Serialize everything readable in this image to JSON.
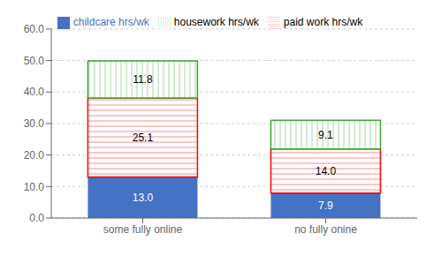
{
  "chart_data": {
    "type": "bar",
    "categories": [
      "some fully online",
      "no fully onine"
    ],
    "series": [
      {
        "name": "childcare hrs/wk",
        "color": "#4472c4",
        "values": [
          13.0,
          7.9
        ],
        "value_labels": [
          "13.0",
          "7.9"
        ]
      },
      {
        "name": "paid work hrs/wk",
        "color": "#ff0000",
        "values": [
          25.1,
          14.0
        ],
        "value_labels": [
          "25.1",
          "14.0"
        ]
      },
      {
        "name": "housework hrs/wk",
        "color": "#38a832",
        "values": [
          11.8,
          9.1
        ],
        "value_labels": [
          "11.8",
          "9.1"
        ]
      }
    ],
    "stacked": true,
    "data_labels": true,
    "ylim": [
      0,
      60
    ],
    "yticks": [
      {
        "value": 0,
        "label": "0.0"
      },
      {
        "value": 10,
        "label": "10.0"
      },
      {
        "value": 20,
        "label": "20.0"
      },
      {
        "value": 30,
        "label": "30.0"
      },
      {
        "value": 40,
        "label": "40.0"
      },
      {
        "value": 50,
        "label": "50.0"
      },
      {
        "value": 60,
        "label": "60.0"
      }
    ],
    "grid": true,
    "legend": "top"
  }
}
